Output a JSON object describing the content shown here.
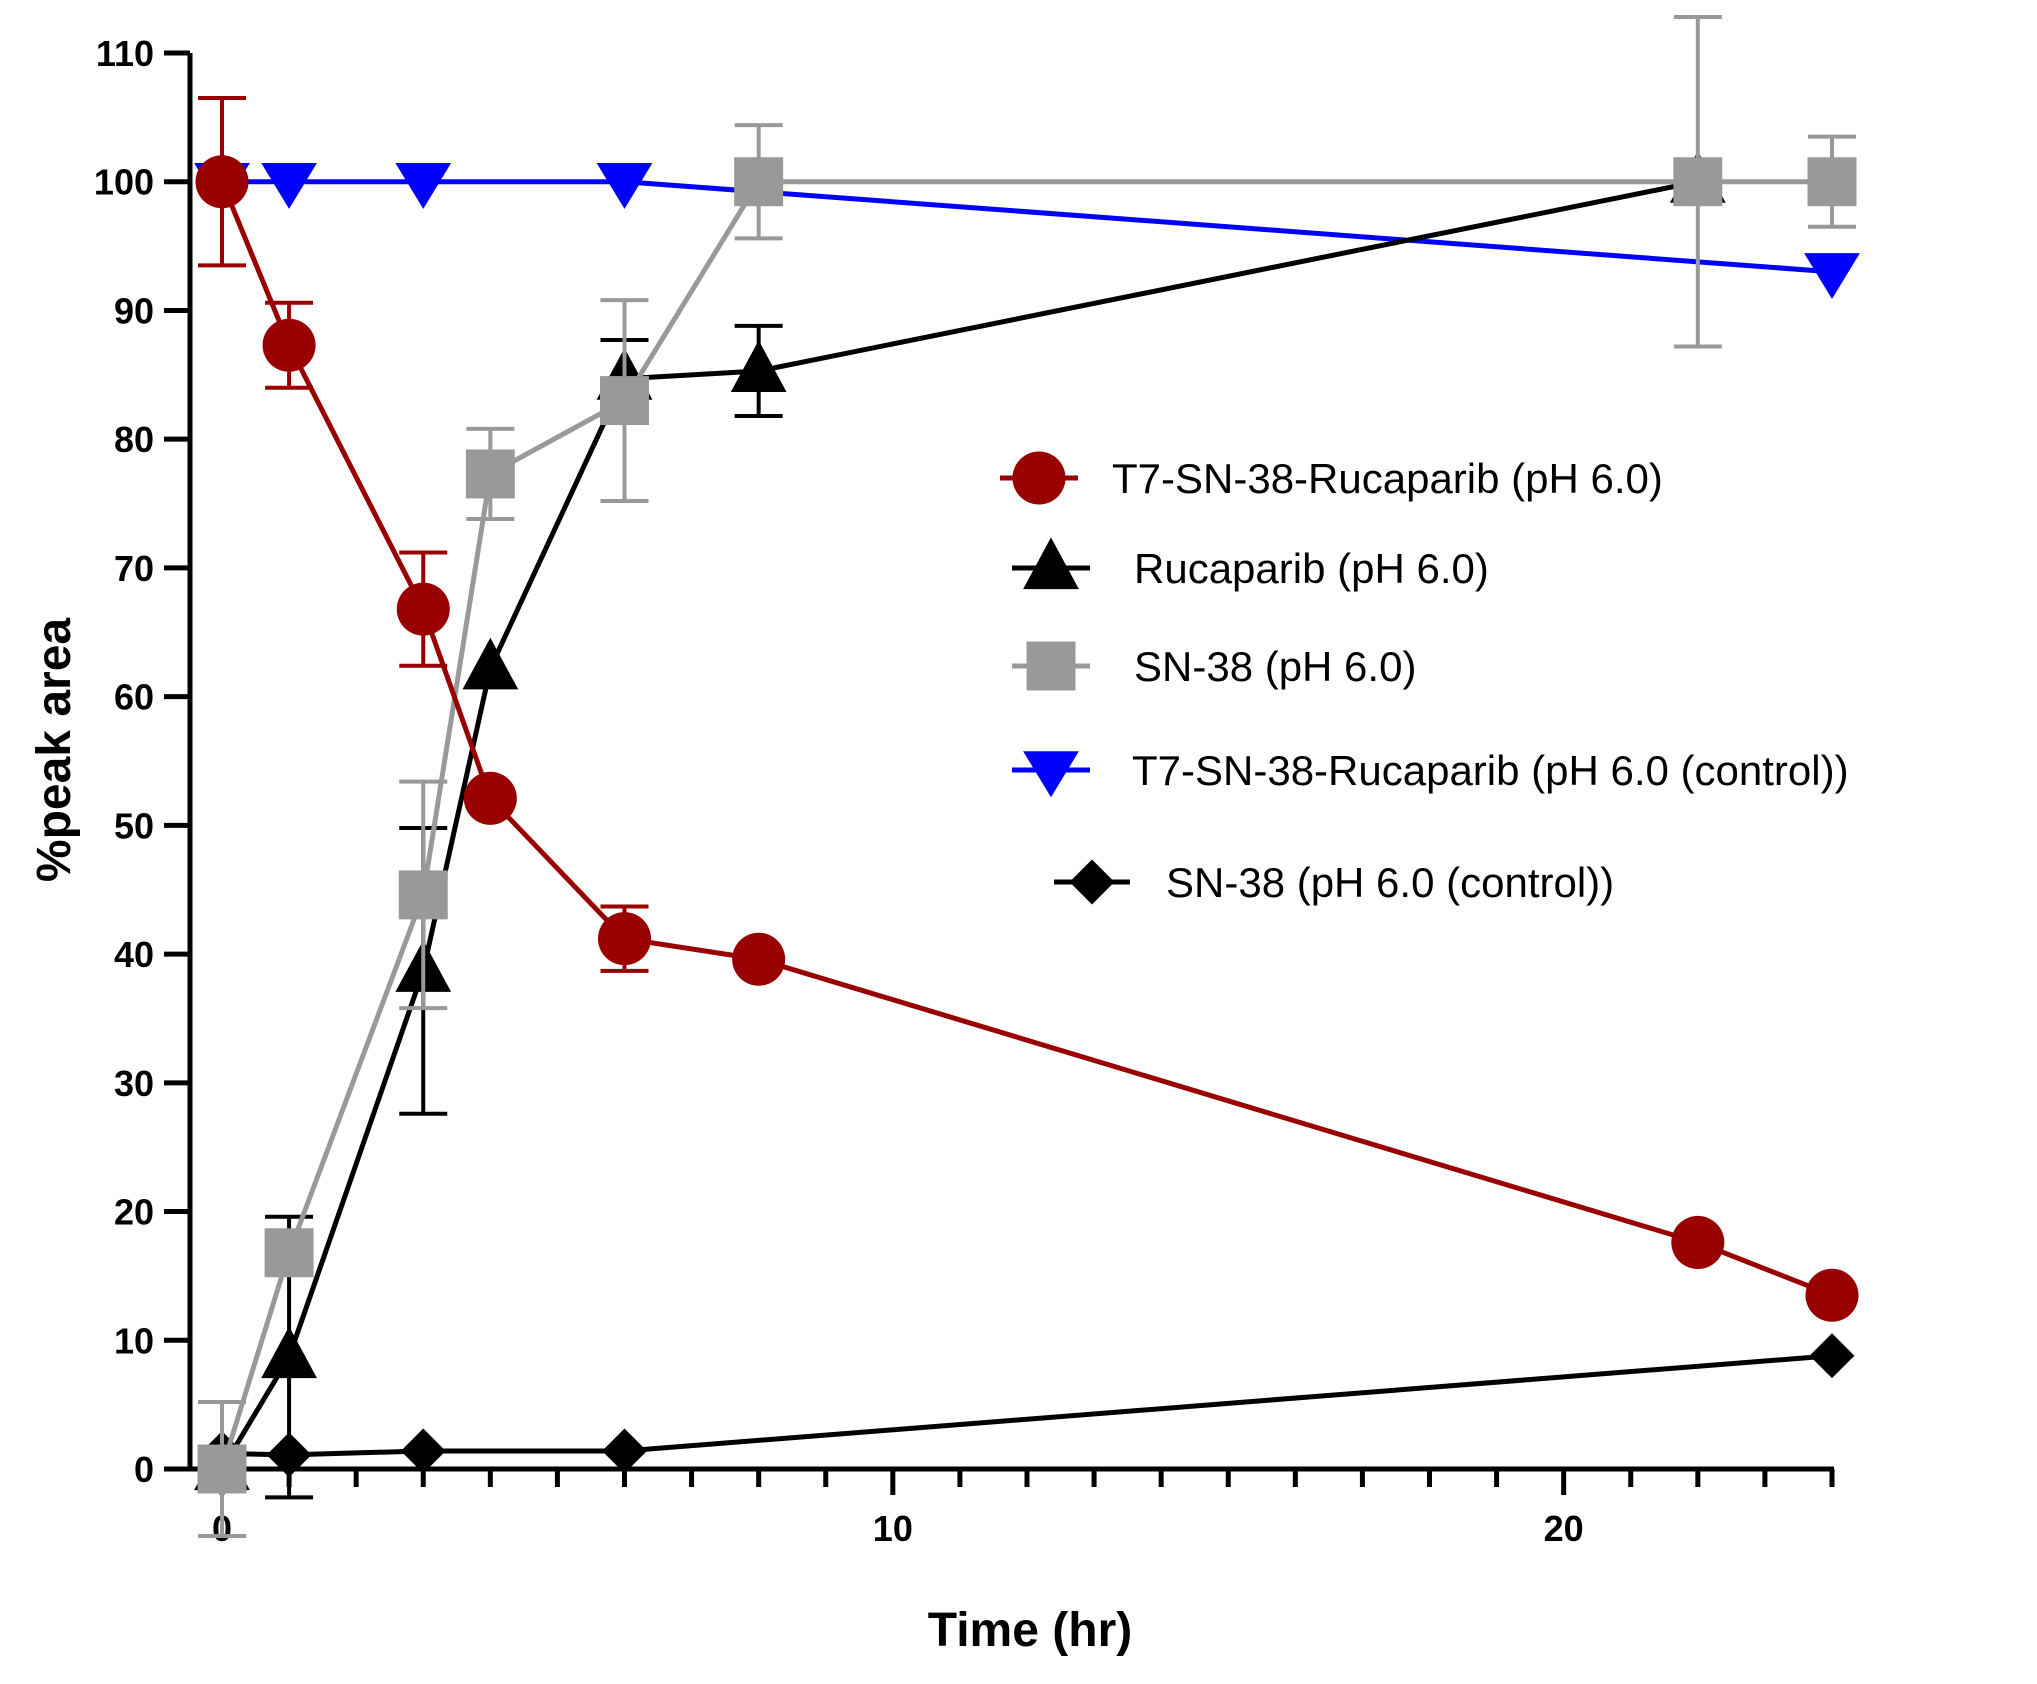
{
  "chart_data": {
    "type": "line",
    "title": "",
    "xlabel": "Time (hr)",
    "ylabel": "%peak area",
    "xlim": [
      0,
      24
    ],
    "ylim": [
      0,
      110
    ],
    "xticks": [
      0,
      10,
      20
    ],
    "yticks": [
      0,
      10,
      20,
      30,
      40,
      50,
      60,
      70,
      80,
      90,
      100,
      110
    ],
    "legend_position": "right-middle",
    "series": [
      {
        "name": "T7-SN-38-Rucaparib (pH 6.0)",
        "color": "#990000",
        "marker": "circle",
        "x": [
          0,
          1,
          3,
          4,
          6,
          8,
          22,
          24
        ],
        "y": [
          100,
          87.3,
          66.8,
          52.1,
          41.2,
          39.6,
          17.6,
          13.5
        ],
        "err": [
          6.5,
          3.3,
          4.4,
          0,
          2.5,
          0,
          0,
          0
        ]
      },
      {
        "name": "Rucaparib (pH 6.0)",
        "color": "#000000",
        "marker": "triangle-up",
        "x": [
          0,
          1,
          3,
          4,
          6,
          8,
          22
        ],
        "y": [
          0,
          8.7,
          38.7,
          62.2,
          84.7,
          85.3,
          100
        ],
        "err": [
          0,
          10.9,
          11.1,
          0,
          3.0,
          3.5,
          0
        ]
      },
      {
        "name": "SN-38 (pH 6.0)",
        "color": "#999999",
        "marker": "square",
        "x": [
          0,
          1,
          3,
          4,
          6,
          8,
          22,
          24
        ],
        "y": [
          0,
          16.8,
          44.6,
          77.3,
          83,
          100,
          100,
          100
        ],
        "err": [
          5.2,
          0,
          8.8,
          3.5,
          7.8,
          4.4,
          12.8,
          3.5
        ]
      },
      {
        "name": "T7-SN-38-Rucaparib (pH 6.0 (control))",
        "color": "#0000ff",
        "marker": "triangle-down",
        "x": [
          0,
          1,
          3,
          6,
          24
        ],
        "y": [
          100,
          100,
          100,
          100,
          93
        ],
        "err": [
          0,
          0,
          0,
          0,
          0
        ]
      },
      {
        "name": "SN-38 (pH 6.0 (control))",
        "color": "#000000",
        "marker": "diamond",
        "x": [
          0,
          1,
          3,
          6,
          24
        ],
        "y": [
          1.2,
          1.1,
          1.4,
          1.4,
          8.8
        ],
        "err": [
          0,
          0,
          0,
          0,
          0
        ]
      }
    ]
  }
}
